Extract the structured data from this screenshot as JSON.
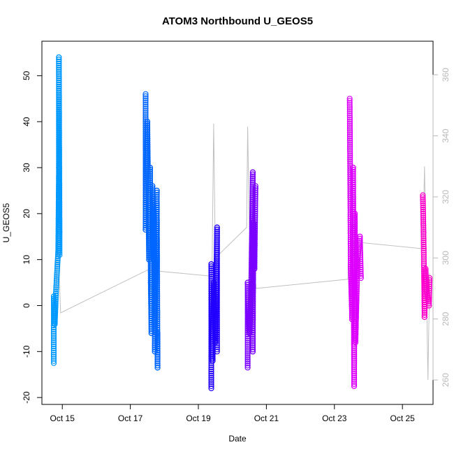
{
  "chart_data": {
    "type": "scatter",
    "title": "ATOM3 Northbound U_GEOS5",
    "xlabel": "Date",
    "ylabel": "U_GEOS5",
    "x_ticks": [
      "Oct 15",
      "Oct 17",
      "Oct 19",
      "Oct 21",
      "Oct 23",
      "Oct 25"
    ],
    "x_tick_days": [
      15,
      17,
      19,
      21,
      23,
      25
    ],
    "xlim": [
      14.4,
      25.9
    ],
    "ylim": [
      -20,
      55
    ],
    "y_ticks": [
      -20,
      -10,
      0,
      10,
      20,
      30,
      40,
      50
    ],
    "y2_ticks": [
      260,
      280,
      300,
      320,
      340,
      360
    ],
    "y2lim": [
      252,
      371
    ],
    "grid": false,
    "series": [
      {
        "color": "#0099ff",
        "points": [
          [
            14.75,
            -12.5
          ],
          [
            14.75,
            2.0
          ],
          [
            14.78,
            -4.0
          ],
          [
            14.82,
            4.0
          ],
          [
            14.88,
            12.0
          ],
          [
            14.9,
            30.0
          ],
          [
            14.9,
            54.0
          ],
          [
            14.92,
            16.0
          ],
          [
            14.92,
            11.0
          ]
        ]
      },
      {
        "color": "#0066ff",
        "points": [
          [
            17.45,
            46.0
          ],
          [
            17.45,
            16.5
          ],
          [
            17.5,
            40.0
          ],
          [
            17.55,
            10.0
          ],
          [
            17.58,
            30.0
          ],
          [
            17.6,
            5.0
          ],
          [
            17.62,
            -6.0
          ],
          [
            17.65,
            26.0
          ],
          [
            17.7,
            18.0
          ],
          [
            17.72,
            -10.0
          ],
          [
            17.78,
            25.0
          ],
          [
            17.8,
            -13.5
          ],
          [
            17.8,
            -6.0
          ]
        ]
      },
      {
        "color": "#2200ff",
        "points": [
          [
            19.38,
            -18.0
          ],
          [
            19.38,
            9.0
          ],
          [
            19.42,
            -12.0
          ],
          [
            19.45,
            5.0
          ],
          [
            19.5,
            -8.0
          ],
          [
            19.52,
            2.0
          ],
          [
            19.55,
            17.0
          ],
          [
            19.55,
            -10.0
          ]
        ]
      },
      {
        "color": "#7a00ff",
        "points": [
          [
            20.45,
            -13.5
          ],
          [
            20.45,
            5.0
          ],
          [
            20.5,
            -6.0
          ],
          [
            20.55,
            2.0
          ],
          [
            20.6,
            29.0
          ],
          [
            20.6,
            -10.0
          ],
          [
            20.62,
            18.0
          ],
          [
            20.65,
            8.0
          ],
          [
            20.68,
            26.0
          ]
        ]
      },
      {
        "color": "#dd00ff",
        "points": [
          [
            23.45,
            45.0
          ],
          [
            23.48,
            8.0
          ],
          [
            23.52,
            -3.0
          ],
          [
            23.55,
            30.0
          ],
          [
            23.58,
            -17.5
          ],
          [
            23.6,
            20.0
          ],
          [
            23.62,
            -8.0
          ],
          [
            23.68,
            10.0
          ],
          [
            23.75,
            15.0
          ],
          [
            23.78,
            6.0
          ]
        ]
      },
      {
        "color": "#ff00cc",
        "points": [
          [
            25.6,
            24.0
          ],
          [
            25.62,
            16.0
          ],
          [
            25.65,
            -2.5
          ],
          [
            25.68,
            8.0
          ],
          [
            25.72,
            3.0
          ],
          [
            25.78,
            0.0
          ],
          [
            25.8,
            6.0
          ]
        ]
      }
    ],
    "secondary_line": {
      "axis": "right",
      "color": "#c0c0c0",
      "points": [
        [
          14.8,
          282
        ],
        [
          14.85,
          312
        ],
        [
          14.95,
          282
        ],
        [
          17.5,
          296
        ],
        [
          19.4,
          294
        ],
        [
          19.45,
          344
        ],
        [
          19.5,
          300
        ],
        [
          20.42,
          310
        ],
        [
          20.45,
          343
        ],
        [
          20.5,
          310
        ],
        [
          20.7,
          290
        ],
        [
          23.4,
          293
        ],
        [
          23.45,
          350
        ],
        [
          23.5,
          300
        ],
        [
          23.8,
          305
        ],
        [
          25.6,
          303
        ],
        [
          25.65,
          330
        ],
        [
          25.75,
          260
        ],
        [
          25.8,
          295
        ]
      ]
    }
  }
}
